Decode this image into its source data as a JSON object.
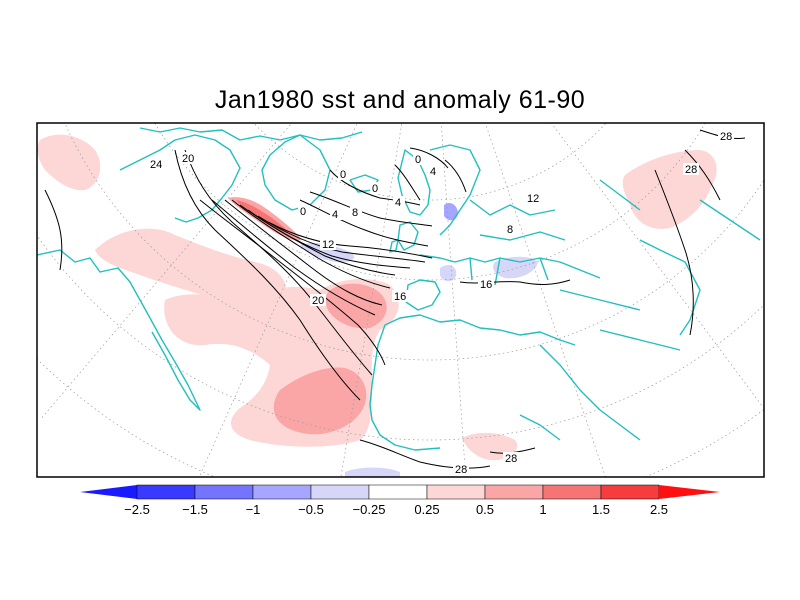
{
  "title": "Jan1980 sst and anomaly 61-90",
  "colorbar": {
    "labels": [
      "−2.5",
      "−1.5",
      "−1",
      "−0.5",
      "−0.25",
      "0.25",
      "0.5",
      "1",
      "1.5",
      "2.5"
    ],
    "colors": [
      "#1a1aff",
      "#3a3aff",
      "#7474ff",
      "#a6a6ff",
      "#d6d6f8",
      "#ffffff",
      "#fdd6d6",
      "#fba6a6",
      "#f67474",
      "#f63c3c",
      "#ff0f0f"
    ],
    "left_color": "#1a1aff",
    "right_color": "#ff0f0f"
  },
  "map": {
    "projection": "polar stereographic",
    "variable": "sst",
    "coastline_color": "#22bfbf",
    "contour_color": "#000000",
    "contour_labels": [
      "24",
      "20",
      "0",
      "0",
      "4",
      "4",
      "8",
      "12",
      "16",
      "20",
      "16",
      "28",
      "28",
      "28",
      "28",
      "0",
      "0",
      "4",
      "8",
      "12"
    ]
  }
}
